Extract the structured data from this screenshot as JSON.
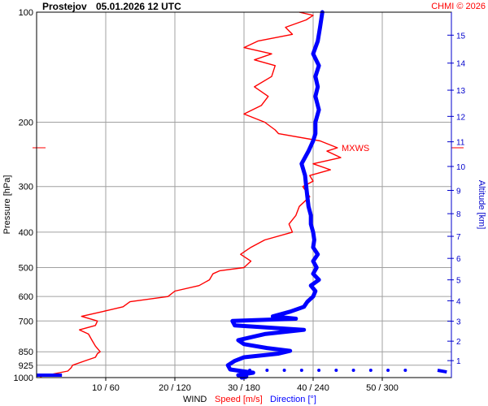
{
  "chart_data": {
    "type": "line",
    "title": "Prostejov",
    "subtitle": "05.01.2026 12 UTC",
    "credit": "CHMI © 2026",
    "ylabel_left": "Pressure [hPa]",
    "ylabel_right": "Altitude [km]",
    "xlabel_prefix": "WIND",
    "xlabel_speed": "Speed [m/s]",
    "xlabel_direction": "Direction [°]",
    "pressure_ticks": [
      100,
      200,
      300,
      400,
      500,
      600,
      700,
      850,
      925,
      1000
    ],
    "pressure_range": [
      100,
      1000
    ],
    "pressure_scale": "log",
    "x_ticks": [
      "10 / 60",
      "20 / 120",
      "30 / 180",
      "40 / 240",
      "50 / 300"
    ],
    "speed_range": [
      0,
      60
    ],
    "direction_range": [
      0,
      360
    ],
    "altitude_ticks_km": [
      1,
      2,
      3,
      4,
      5,
      6,
      7,
      8,
      9,
      10,
      11,
      12,
      13,
      14,
      15
    ],
    "max_wind_label": "MXWS",
    "max_wind_pressure": 235,
    "grid": true,
    "colors": {
      "speed": "#ff0000",
      "direction": "#0000ff",
      "grid": "#a0a0a0",
      "altitude": "#0000cc"
    },
    "series": [
      {
        "name": "Speed [m/s]",
        "pressure": [
          995,
          985,
          960,
          940,
          925,
          900,
          880,
          860,
          850,
          820,
          790,
          760,
          740,
          720,
          700,
          680,
          660,
          640,
          620,
          600,
          580,
          560,
          540,
          520,
          510,
          500,
          480,
          460,
          440,
          420,
          400,
          380,
          360,
          340,
          320,
          300,
          290,
          280,
          270,
          260,
          250,
          240,
          235,
          225,
          215,
          210,
          200,
          190,
          180,
          170,
          160,
          150,
          140,
          135,
          130,
          125,
          120,
          115,
          110,
          105,
          102,
          100
        ],
        "values": [
          0.5,
          1.5,
          4.5,
          5,
          5.2,
          7,
          8.5,
          8.8,
          9.2,
          8.5,
          8,
          7.5,
          6.2,
          8.5,
          8.8,
          6.5,
          9.5,
          12.5,
          13.5,
          19,
          20,
          23.5,
          25,
          25.5,
          26.5,
          30,
          31,
          29.5,
          31,
          33,
          37,
          36.5,
          37.5,
          38,
          39.5,
          38.5,
          40,
          39.5,
          42.5,
          40,
          44,
          42,
          43.5,
          41,
          35,
          34.5,
          33,
          30,
          32.5,
          33.5,
          31.5,
          34,
          34.5,
          31.5,
          34,
          30,
          32,
          37,
          36,
          39,
          40,
          38
        ]
      },
      {
        "name": "Direction [°]",
        "pressure": [
          1000,
          995,
          985,
          970,
          950,
          925,
          900,
          880,
          860,
          845,
          830,
          810,
          790,
          760,
          740,
          720,
          700,
          690,
          680,
          660,
          640,
          620,
          600,
          580,
          560,
          540,
          520,
          500,
          480,
          460,
          440,
          420,
          400,
          380,
          360,
          340,
          320,
          300,
          280,
          260,
          240,
          225,
          215,
          200,
          185,
          170,
          160,
          150,
          140,
          130,
          120,
          110,
          100
        ],
        "values": [
          178,
          182,
          175,
          188,
          168,
          166,
          172,
          180,
          210,
          220,
          200,
          180,
          175,
          198,
          232,
          172,
          170,
          225,
          205,
          220,
          232,
          235,
          240,
          242,
          238,
          245,
          240,
          243,
          240,
          244,
          240,
          241,
          240,
          238,
          238,
          236,
          235,
          234,
          233,
          230,
          236,
          240,
          242,
          242,
          245,
          242,
          244,
          242,
          245,
          240,
          244,
          246,
          248
        ]
      }
    ],
    "direction_surface_dots": [
      185,
      200,
      215,
      230,
      245,
      260,
      275,
      290,
      305,
      320
    ]
  }
}
